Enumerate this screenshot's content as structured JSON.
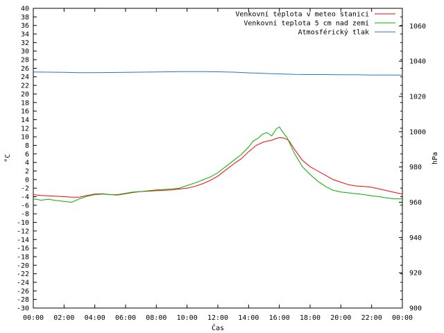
{
  "chart_data": {
    "type": "line",
    "xlabel": "Čas",
    "ylabel": "°C",
    "ylabel_right": "hPa",
    "ylim": [
      -30,
      40
    ],
    "ylim_right": [
      900,
      1070
    ],
    "xlim": [
      0,
      24
    ],
    "grid": false,
    "legend_position": "top-right",
    "x_tick_labels": [
      "00:00",
      "02:00",
      "04:00",
      "06:00",
      "08:00",
      "10:00",
      "12:00",
      "14:00",
      "16:00",
      "18:00",
      "20:00",
      "22:00",
      "00:00"
    ],
    "y_tick_labels": [
      "-30",
      "-28",
      "-26",
      "-24",
      "-22",
      "-20",
      "-18",
      "-16",
      "-14",
      "-12",
      "-10",
      "-8",
      "-6",
      "-4",
      "-2",
      "0",
      "2",
      "4",
      "6",
      "8",
      "10",
      "12",
      "14",
      "16",
      "18",
      "20",
      "22",
      "24",
      "26",
      "28",
      "30",
      "32",
      "34",
      "36",
      "38",
      "40"
    ],
    "y_right_tick_labels": [
      "900",
      "920",
      "940",
      "960",
      "980",
      "1000",
      "1020",
      "1040",
      "1060"
    ],
    "series": [
      {
        "name": "Venkovní teplota v meteo stanici",
        "color": "#ff0000",
        "axis": "left",
        "x": [
          0,
          0.5,
          1,
          1.5,
          2,
          2.5,
          3,
          3.5,
          4,
          4.5,
          5,
          5.5,
          6,
          6.5,
          7,
          7.5,
          8,
          8.5,
          9,
          9.5,
          10,
          10.5,
          11,
          11.5,
          12,
          12.5,
          13,
          13.5,
          14,
          14.5,
          15,
          15.5,
          15.8,
          16,
          16.3,
          16.6,
          17,
          17.5,
          18,
          18.5,
          19,
          19.5,
          20,
          20.5,
          21,
          21.5,
          22,
          22.5,
          23,
          23.5,
          24
        ],
        "y": [
          -3.5,
          -3.7,
          -3.8,
          -3.9,
          -4.0,
          -4.1,
          -4.1,
          -3.7,
          -3.4,
          -3.3,
          -3.5,
          -3.6,
          -3.3,
          -3.0,
          -2.8,
          -2.7,
          -2.6,
          -2.5,
          -2.4,
          -2.2,
          -2.0,
          -1.6,
          -1.0,
          -0.2,
          0.8,
          2.2,
          3.6,
          4.8,
          6.5,
          8.0,
          8.8,
          9.2,
          9.6,
          9.8,
          9.7,
          9.2,
          7.0,
          4.5,
          3.0,
          2.0,
          1.0,
          0.0,
          -0.6,
          -1.2,
          -1.5,
          -1.6,
          -1.8,
          -2.2,
          -2.6,
          -3.0,
          -3.4
        ]
      },
      {
        "name": "Venkovní teplota 5 cm nad zemí",
        "color": "#00b000",
        "axis": "left",
        "x": [
          0,
          0.5,
          1,
          1.5,
          2,
          2.5,
          3,
          3.5,
          4,
          4.5,
          5,
          5.5,
          6,
          6.5,
          7,
          7.5,
          8,
          8.5,
          9,
          9.5,
          10,
          10.5,
          11,
          11.5,
          12,
          12.5,
          13,
          13.5,
          14,
          14.3,
          14.6,
          14.9,
          15.2,
          15.5,
          15.8,
          16,
          16.2,
          16.5,
          17,
          17.5,
          18,
          18.5,
          19,
          19.5,
          20,
          20.5,
          21,
          21.5,
          22,
          22.5,
          23,
          23.5,
          24
        ],
        "y": [
          -4.5,
          -4.8,
          -4.6,
          -4.9,
          -5.1,
          -5.3,
          -4.5,
          -3.9,
          -3.5,
          -3.4,
          -3.5,
          -3.5,
          -3.2,
          -2.9,
          -2.8,
          -2.6,
          -2.4,
          -2.3,
          -2.2,
          -2.0,
          -1.4,
          -0.8,
          -0.1,
          0.6,
          1.6,
          3.0,
          4.4,
          5.8,
          7.6,
          9.0,
          9.6,
          10.6,
          11.0,
          10.2,
          11.8,
          12.3,
          11.2,
          9.8,
          6.0,
          3.0,
          1.2,
          -0.4,
          -1.6,
          -2.5,
          -2.9,
          -3.1,
          -3.3,
          -3.5,
          -3.8,
          -4.0,
          -4.3,
          -4.5,
          -4.5
        ]
      },
      {
        "name": "Atmosférický tlak",
        "color": "#1f78c8",
        "axis": "right",
        "x": [
          0,
          1,
          2,
          3,
          4,
          5,
          6,
          7,
          8,
          9,
          10,
          11,
          12,
          13,
          14,
          15,
          16,
          17,
          18,
          19,
          20,
          21,
          22,
          23,
          24
        ],
        "y": [
          1033.9,
          1033.8,
          1033.7,
          1033.5,
          1033.5,
          1033.6,
          1033.7,
          1033.8,
          1033.9,
          1034.0,
          1034.1,
          1034.1,
          1034.0,
          1033.8,
          1033.4,
          1033.1,
          1032.8,
          1032.5,
          1032.4,
          1032.4,
          1032.3,
          1032.3,
          1032.2,
          1032.2,
          1032.1
        ]
      }
    ]
  }
}
